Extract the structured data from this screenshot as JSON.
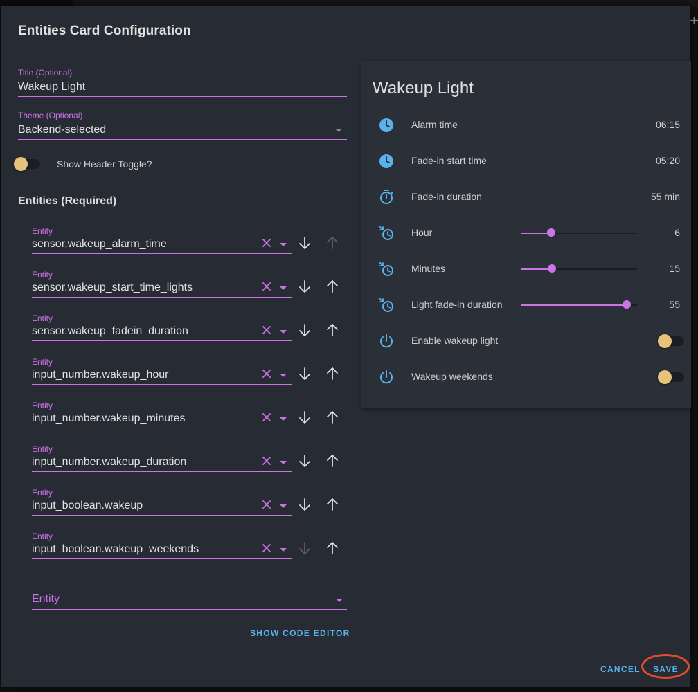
{
  "dialog": {
    "title": "Entities Card Configuration"
  },
  "form": {
    "title_field": {
      "label": "Title (Optional)",
      "value": "Wakeup Light"
    },
    "theme_field": {
      "label": "Theme (Optional)",
      "value": "Backend-selected"
    },
    "header_toggle": {
      "label": "Show Header Toggle?",
      "on": false
    },
    "entities_heading": "Entities (Required)",
    "entity_label": "Entity",
    "entities": [
      "sensor.wakeup_alarm_time",
      "sensor.wakeup_start_time_lights",
      "sensor.wakeup_fadein_duration",
      "input_number.wakeup_hour",
      "input_number.wakeup_minutes",
      "input_number.wakeup_duration",
      "input_boolean.wakeup",
      "input_boolean.wakeup_weekends"
    ],
    "add_entity_placeholder": "Entity",
    "show_code_editor": "SHOW CODE EDITOR"
  },
  "preview": {
    "title": "Wakeup Light",
    "rows": [
      {
        "name": "Alarm time",
        "state": "06:15",
        "icon": "clock-icon"
      },
      {
        "name": "Fade-in start time",
        "state": "05:20",
        "icon": "clock-icon"
      },
      {
        "name": "Fade-in duration",
        "state": "55 min",
        "icon": "timer-icon"
      },
      {
        "name": "Hour",
        "value": "6",
        "slider_fraction": 0.26,
        "icon": "clock-start-icon"
      },
      {
        "name": "Minutes",
        "value": "15",
        "slider_fraction": 0.27,
        "icon": "clock-start-icon"
      },
      {
        "name": "Light fade-in duration",
        "value": "55",
        "slider_fraction": 0.91,
        "icon": "clock-start-icon"
      },
      {
        "name": "Enable wakeup light",
        "on": false,
        "icon": "power-icon"
      },
      {
        "name": "Wakeup weekends",
        "on": false,
        "icon": "power-icon"
      }
    ]
  },
  "actions": {
    "cancel": "CANCEL",
    "save": "SAVE"
  },
  "colors": {
    "accent": "#cc73e6",
    "primary": "#5ab2eb",
    "toggle_thumb": "#e7c27b",
    "dialog_bg": "#272b33",
    "highlight_ring": "#e54b2b"
  }
}
